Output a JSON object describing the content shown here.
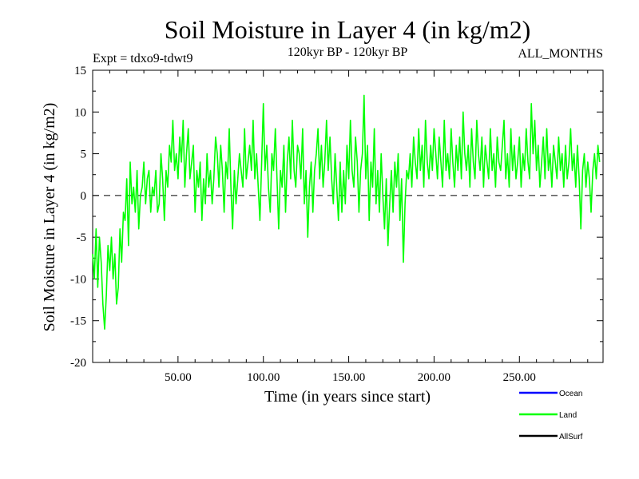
{
  "title": "Soil Moisture in Layer 4 (in kg/m2)",
  "subtitle_left": "Expt = tdxo9-tdwt9",
  "subtitle_center": "120kyr BP - 120kyr BP",
  "subtitle_right": "ALL_MONTHS",
  "chart_data": {
    "type": "line",
    "title": "Soil Moisture in Layer 4 (in kg/m2)",
    "xlabel": "Time (in years since start)",
    "ylabel": "Soil Moisture in Layer 4 (in kg/m2)",
    "xlim": [
      0,
      299
    ],
    "ylim": [
      -20,
      15
    ],
    "x_ticks": [
      50,
      100,
      150,
      200,
      250
    ],
    "x_tick_labels": [
      "50.00",
      "100.00",
      "150.00",
      "200.00",
      "250.00"
    ],
    "y_ticks": [
      15,
      10,
      5,
      0,
      -5,
      -10,
      -15,
      -20
    ],
    "y_tick_labels": [
      "15",
      "10",
      "5",
      "0",
      "-5",
      "-10",
      "-15",
      "-20"
    ],
    "zero_line": true,
    "legend": [
      {
        "name": "Ocean",
        "color": "#0000ff"
      },
      {
        "name": "Land",
        "color": "#00ff00"
      },
      {
        "name": "AllSurf",
        "color": "#000000"
      }
    ],
    "series": [
      {
        "name": "Land",
        "color": "#00ff00",
        "x_start": 0,
        "x_step": 1,
        "values": [
          -7,
          -10,
          -4,
          -11,
          -5,
          -8,
          -13,
          -16,
          -12,
          -6,
          -9,
          -5,
          -10,
          -7,
          -13,
          -11,
          -4,
          -8,
          -2,
          -3,
          2,
          -6,
          4,
          -1,
          1,
          -2,
          3,
          -4,
          0,
          1,
          4,
          -1,
          2,
          3,
          -2,
          1,
          0,
          3,
          -2,
          -1,
          5,
          2,
          -3,
          3,
          1,
          6,
          4,
          9,
          3,
          5,
          2,
          7,
          4,
          9,
          1,
          5,
          8,
          2,
          4,
          6,
          -2,
          3,
          1,
          4,
          -3,
          2,
          -1,
          5,
          1,
          3,
          -1,
          2,
          7,
          5,
          1,
          6,
          3,
          -2,
          4,
          2,
          8,
          1,
          -4,
          3,
          -1,
          2,
          5,
          3,
          1,
          8,
          2,
          4,
          6,
          3,
          9,
          2,
          5,
          1,
          -3,
          4,
          11,
          3,
          6,
          1,
          -2,
          5,
          3,
          8,
          2,
          -4,
          3,
          1,
          6,
          -2,
          4,
          7,
          2,
          9,
          3,
          1,
          6,
          5,
          2,
          8,
          -1,
          3,
          -5,
          1,
          4,
          -2,
          3,
          5,
          8,
          2,
          6,
          1,
          4,
          9,
          3,
          7,
          2,
          -1,
          5,
          1,
          -3,
          4,
          -2,
          3,
          -1,
          6,
          2,
          9,
          3,
          1,
          7,
          4,
          -2,
          3,
          5,
          12,
          2,
          6,
          -3,
          4,
          1,
          8,
          -1,
          3,
          -2,
          5,
          0,
          -4,
          2,
          -6,
          -1,
          3,
          -2,
          4,
          1,
          5,
          -3,
          2,
          -8,
          -1,
          3,
          2,
          5,
          1,
          7,
          4,
          2,
          8,
          3,
          6,
          1,
          9,
          4,
          2,
          6,
          3,
          8,
          5,
          2,
          7,
          4,
          1,
          9,
          3,
          5,
          2,
          8,
          4,
          1,
          6,
          3,
          7,
          2,
          10,
          5,
          3,
          6,
          1,
          8,
          4,
          2,
          9,
          5,
          3,
          7,
          1,
          6,
          4,
          2,
          8,
          3,
          5,
          1,
          7,
          4,
          3,
          6,
          9,
          2,
          5,
          1,
          8,
          3,
          6,
          2,
          4,
          7,
          1,
          5,
          3,
          8,
          4,
          2,
          11,
          5,
          9,
          3,
          6,
          1,
          4,
          7,
          2,
          8,
          3,
          5,
          1,
          6,
          4,
          2,
          7,
          3,
          5,
          1,
          6,
          2,
          4,
          8,
          3,
          5,
          1,
          6,
          2,
          -4,
          3,
          5,
          1,
          4,
          2,
          -2,
          3,
          5,
          2,
          6,
          4
        ]
      }
    ]
  }
}
